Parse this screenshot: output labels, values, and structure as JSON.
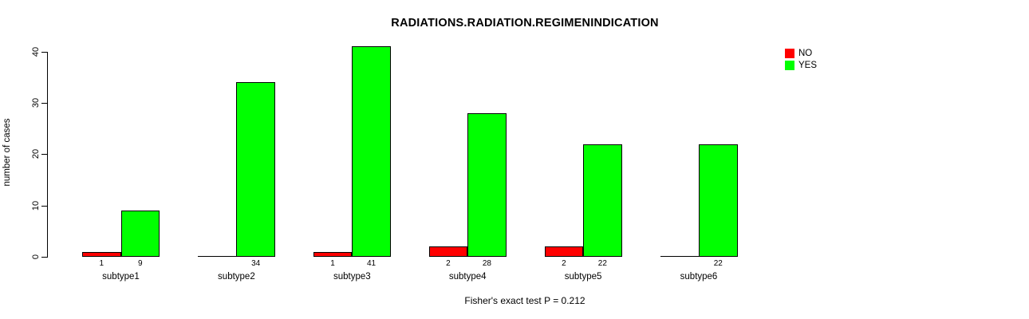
{
  "chart_data": {
    "type": "bar",
    "grouped": true,
    "title": "RADIATIONS.RADIATION.REGIMENINDICATION",
    "xlabel": "",
    "ylabel": "number of cases",
    "categories": [
      "subtype1",
      "subtype2",
      "subtype3",
      "subtype4",
      "subtype5",
      "subtype6"
    ],
    "series": [
      {
        "name": "NO",
        "color": "#ff0000",
        "values": [
          1,
          0,
          1,
          2,
          2,
          0
        ]
      },
      {
        "name": "YES",
        "color": "#00ff00",
        "values": [
          9,
          34,
          41,
          28,
          22,
          22
        ]
      }
    ],
    "ylim": [
      0,
      40
    ],
    "yticks": [
      0,
      10,
      20,
      30,
      40
    ],
    "bar_value_labels_shown": true,
    "zero_value_labels_hidden": true,
    "grid": false,
    "legend_position": "top-right",
    "annotation": "Fisher's exact test P = 0.212"
  }
}
